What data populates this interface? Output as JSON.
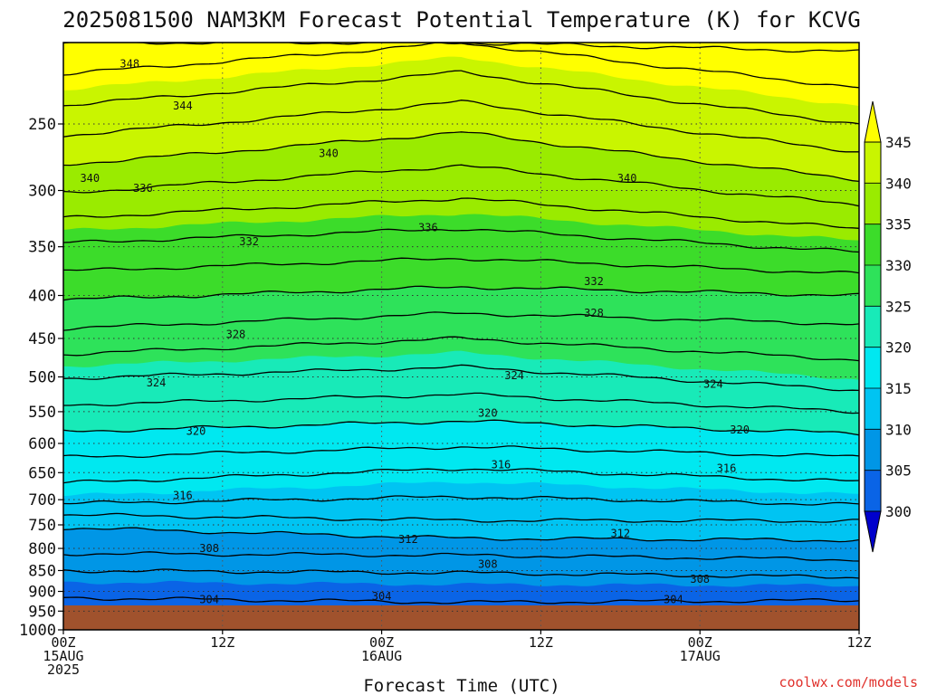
{
  "chart_data": {
    "type": "heatmap",
    "title": "2025081500 NAM3KM Forecast Potential Temperature (K) for KCVG",
    "xlabel": "Forecast Time (UTC)",
    "ylabel": "",
    "x_ticks": [
      {
        "hour": 0,
        "line1": "00Z",
        "line2": "15AUG",
        "line3": "2025"
      },
      {
        "hour": 12,
        "line1": "12Z",
        "line2": "",
        "line3": ""
      },
      {
        "hour": 24,
        "line1": "00Z",
        "line2": "16AUG",
        "line3": ""
      },
      {
        "hour": 36,
        "line1": "12Z",
        "line2": "",
        "line3": ""
      },
      {
        "hour": 48,
        "line1": "00Z",
        "line2": "17AUG",
        "line3": ""
      },
      {
        "hour": 60,
        "line1": "12Z",
        "line2": "",
        "line3": ""
      }
    ],
    "xlim_hours": [
      0,
      60
    ],
    "y_axis": "pressure (hPa), log scale, inverted",
    "y_ticks": [
      "250",
      "300",
      "350",
      "400",
      "450",
      "500",
      "550",
      "600",
      "650",
      "700",
      "750",
      "800",
      "850",
      "900",
      "950",
      "1000"
    ],
    "ylim": [
      1000,
      200
    ],
    "grid": true,
    "colorbar": {
      "levels": [
        "345",
        "340",
        "335",
        "330",
        "325",
        "320",
        "315",
        "310",
        "305",
        "300"
      ],
      "bins": [
        {
          "range": [
            345,
            350
          ],
          "color": "#ffff00"
        },
        {
          "range": [
            340,
            345
          ],
          "color": "#c9f500"
        },
        {
          "range": [
            335,
            340
          ],
          "color": "#9aeb00"
        },
        {
          "range": [
            330,
            335
          ],
          "color": "#3cdc2a"
        },
        {
          "range": [
            325,
            330
          ],
          "color": "#2ee25a"
        },
        {
          "range": [
            320,
            325
          ],
          "color": "#18eab8"
        },
        {
          "range": [
            315,
            320
          ],
          "color": "#00e8f0"
        },
        {
          "range": [
            310,
            315
          ],
          "color": "#00c4f2"
        },
        {
          "range": [
            305,
            310
          ],
          "color": "#0096e6"
        },
        {
          "range": [
            300,
            305
          ],
          "color": "#0a64e6"
        },
        {
          "range": [
            295,
            300
          ],
          "color": "#0a28d8"
        }
      ],
      "over_color": "#ffff00",
      "under_color": "#0000cc"
    },
    "ground_color": "#a0522d",
    "contour_levels": [
      304,
      306,
      308,
      310,
      312,
      314,
      316,
      318,
      320,
      322,
      324,
      326,
      328,
      330,
      332,
      334,
      336,
      338,
      340,
      342,
      344,
      346,
      348
    ],
    "theta_profile_start": [
      [
        1000,
        303.0
      ],
      [
        900,
        304.2
      ],
      [
        850,
        306.0
      ],
      [
        800,
        308.6
      ],
      [
        750,
        310.2
      ],
      [
        700,
        314.7
      ],
      [
        650,
        316.8
      ],
      [
        600,
        319.1
      ],
      [
        550,
        321.5
      ],
      [
        500,
        324.1
      ],
      [
        450,
        327.3
      ],
      [
        400,
        330.3
      ],
      [
        350,
        333.7
      ],
      [
        300,
        338.2
      ],
      [
        250,
        342.8
      ],
      [
        200,
        348.0
      ]
    ],
    "theta_profile_mid": [
      [
        1000,
        303.0
      ],
      [
        900,
        304.4
      ],
      [
        850,
        306.2
      ],
      [
        800,
        308.8
      ],
      [
        750,
        311.6
      ],
      [
        700,
        313.8
      ],
      [
        650,
        315.6
      ],
      [
        600,
        318.3
      ],
      [
        550,
        320.7
      ],
      [
        500,
        323.3
      ],
      [
        450,
        326.0
      ],
      [
        400,
        329.4
      ],
      [
        350,
        332.8
      ],
      [
        300,
        336.5
      ],
      [
        250,
        340.5
      ],
      [
        200,
        346.0
      ]
    ],
    "theta_profile_end": [
      [
        1000,
        303.0
      ],
      [
        900,
        304.3
      ],
      [
        850,
        306.8
      ],
      [
        800,
        309.2
      ],
      [
        750,
        311.5
      ],
      [
        700,
        314.6
      ],
      [
        650,
        316.7
      ],
      [
        600,
        319.1
      ],
      [
        550,
        322.0
      ],
      [
        500,
        325.2
      ],
      [
        450,
        327.0
      ],
      [
        400,
        330.0
      ],
      [
        350,
        334.5
      ],
      [
        300,
        339.2
      ],
      [
        250,
        344.0
      ],
      [
        200,
        348.5
      ]
    ],
    "contour_labels": [
      {
        "text": "348",
        "hour": 5.0,
        "p": 212
      },
      {
        "text": "344",
        "hour": 9.0,
        "p": 238
      },
      {
        "text": "340",
        "hour": 20.0,
        "p": 271
      },
      {
        "text": "340",
        "hour": 2.0,
        "p": 290
      },
      {
        "text": "336",
        "hour": 6.0,
        "p": 298
      },
      {
        "text": "340",
        "hour": 42.5,
        "p": 290
      },
      {
        "text": "336",
        "hour": 27.5,
        "p": 332
      },
      {
        "text": "332",
        "hour": 14.0,
        "p": 345
      },
      {
        "text": "332",
        "hour": 40.0,
        "p": 385
      },
      {
        "text": "328",
        "hour": 13.0,
        "p": 445
      },
      {
        "text": "328",
        "hour": 40.0,
        "p": 420
      },
      {
        "text": "324",
        "hour": 7.0,
        "p": 508
      },
      {
        "text": "324",
        "hour": 34.0,
        "p": 498
      },
      {
        "text": "324",
        "hour": 49.0,
        "p": 510
      },
      {
        "text": "320",
        "hour": 10.0,
        "p": 580
      },
      {
        "text": "320",
        "hour": 32.0,
        "p": 552
      },
      {
        "text": "320",
        "hour": 51.0,
        "p": 578
      },
      {
        "text": "316",
        "hour": 9.0,
        "p": 692
      },
      {
        "text": "316",
        "hour": 33.0,
        "p": 636
      },
      {
        "text": "316",
        "hour": 50.0,
        "p": 642
      },
      {
        "text": "312",
        "hour": 26.0,
        "p": 780
      },
      {
        "text": "312",
        "hour": 42.0,
        "p": 768
      },
      {
        "text": "308",
        "hour": 11.0,
        "p": 800
      },
      {
        "text": "308",
        "hour": 32.0,
        "p": 835
      },
      {
        "text": "308",
        "hour": 48.0,
        "p": 870
      },
      {
        "text": "304",
        "hour": 11.0,
        "p": 920
      },
      {
        "text": "304",
        "hour": 24.0,
        "p": 912
      },
      {
        "text": "304",
        "hour": 46.0,
        "p": 920
      }
    ]
  },
  "credit": "coolwx.com/models"
}
